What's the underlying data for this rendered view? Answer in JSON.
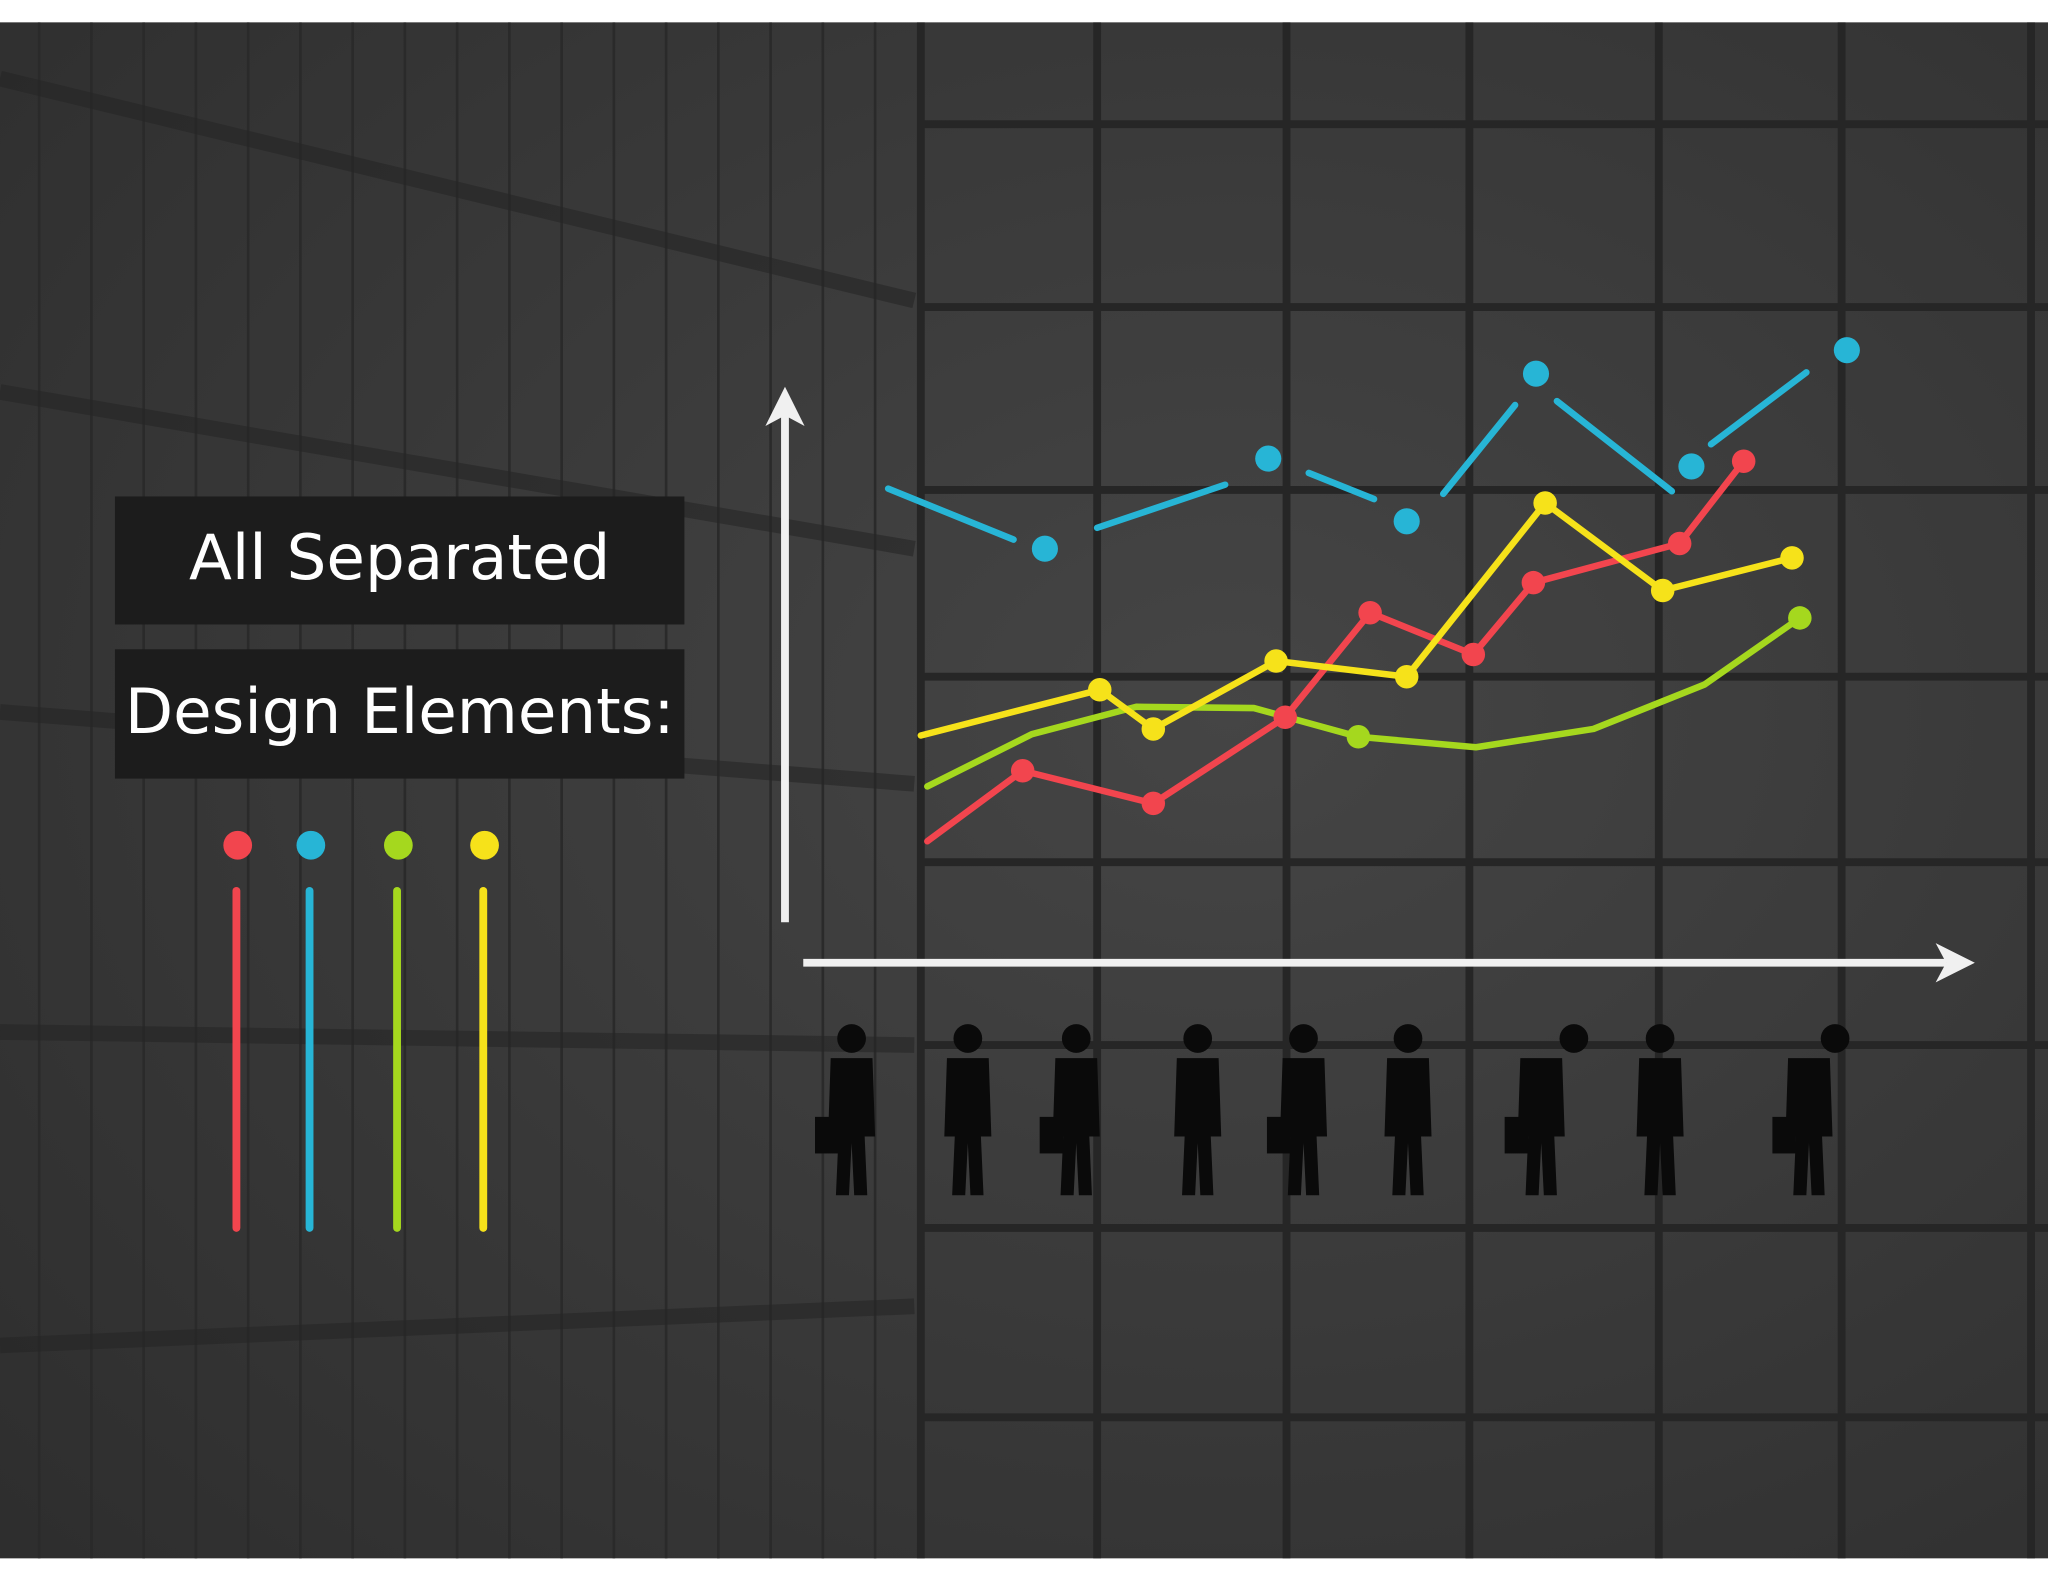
{
  "texts": {
    "line1": "All Separated",
    "line2": "Design Elements:"
  }
}
